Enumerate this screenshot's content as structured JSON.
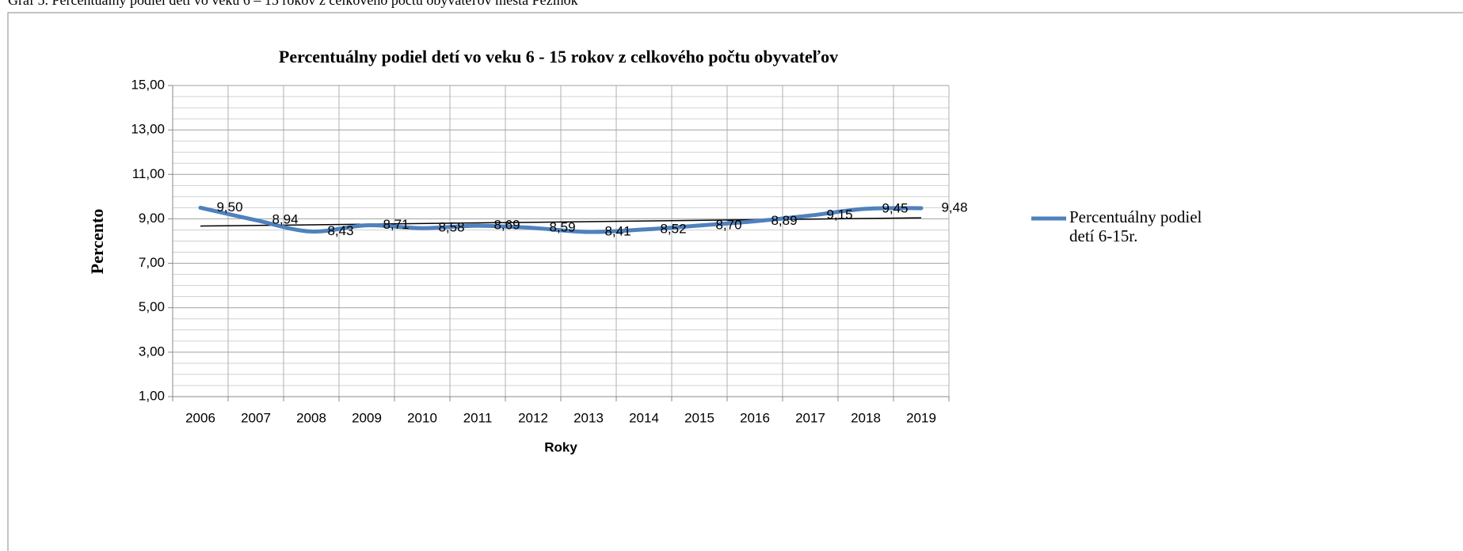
{
  "chart_data": {
    "type": "line",
    "caption": "Graf 5. Percentuálny podiel detí vo veku 6 – 15 rokov z celkového počtu obyvateľov mesta Pezinok",
    "title": "Percentuálny podiel detí vo veku 6 - 15 rokov z celkového počtu obyvateľov",
    "x_label": "Roky",
    "y_label": "Percento",
    "categories": [
      "2006",
      "2007",
      "2008",
      "2009",
      "2010",
      "2011",
      "2012",
      "2013",
      "2014",
      "2015",
      "2016",
      "2017",
      "2018",
      "2019"
    ],
    "series": [
      {
        "name": "Percentuálny podiel detí 6-15r.",
        "color": "#4f81bd",
        "values": [
          9.5,
          8.94,
          8.43,
          8.71,
          8.58,
          8.69,
          8.59,
          8.41,
          8.52,
          8.7,
          8.89,
          9.15,
          9.45,
          9.48
        ],
        "value_labels": [
          "9,50",
          "8,94",
          "8,43",
          "8,71",
          "8,58",
          "8,69",
          "8,59",
          "8,41",
          "8,52",
          "8,70",
          "8,89",
          "9,15",
          "9,45",
          "9,48"
        ]
      }
    ],
    "ylim": [
      1,
      15
    ],
    "yticks": [
      {
        "value": 1,
        "label": "1,00"
      },
      {
        "value": 3,
        "label": "3,00"
      },
      {
        "value": 5,
        "label": "5,00"
      },
      {
        "value": 7,
        "label": "7,00"
      },
      {
        "value": 9,
        "label": "9,00"
      },
      {
        "value": 11,
        "label": "11,00"
      },
      {
        "value": 13,
        "label": "13,00"
      },
      {
        "value": 15,
        "label": "15,00"
      }
    ],
    "grid": true,
    "minor_grid": true,
    "smooth": true,
    "trendline": true,
    "legend": "right"
  }
}
